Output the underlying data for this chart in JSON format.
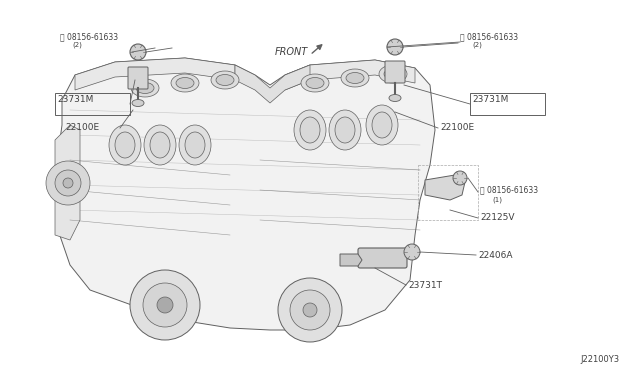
{
  "bg_color": "#ffffff",
  "lc": "#606060",
  "lc2": "#888888",
  "text_color": "#404040",
  "fig_width": 6.4,
  "fig_height": 3.72,
  "dpi": 100,
  "footer": "J22100Y3",
  "label_08156_L": "⒵ 08156-61633\n(2)",
  "label_08156_R": "⒵ 08156-61633\n(2)",
  "label_08156_RS": "⒵ 08156-61633\n(1)",
  "label_23731M_L": "23731M",
  "label_23731M_R": "23731M",
  "label_22100E_L": "22100E",
  "label_22100E_R": "22100E",
  "label_22125V": "22125V",
  "label_22406A": "22406A",
  "label_23731T": "23731T",
  "label_FRONT": "FRONT",
  "font_small": 5.5,
  "font_label": 6.5,
  "font_front": 7.0
}
